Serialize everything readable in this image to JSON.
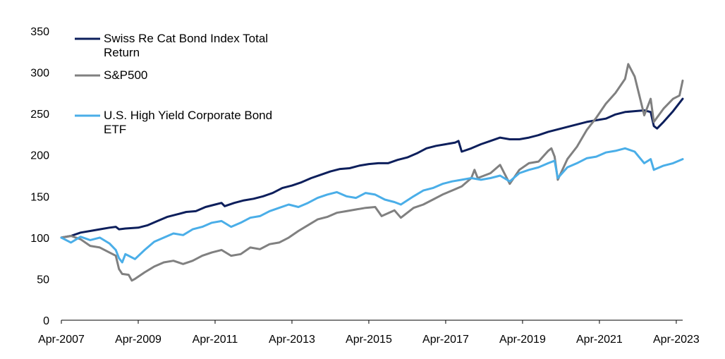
{
  "chart_data": {
    "type": "line",
    "title": "",
    "xlabel": "",
    "ylabel": "",
    "ylim": [
      0,
      350
    ],
    "yticks": [
      "0",
      "50",
      "100",
      "150",
      "200",
      "250",
      "300",
      "350"
    ],
    "xticks": [
      "Apr-2007",
      "Apr-2009",
      "Apr-2011",
      "Apr-2013",
      "Apr-2015",
      "Apr-2017",
      "Apr-2019",
      "Apr-2021",
      "Apr-2023"
    ],
    "xrange": [
      "2007-04",
      "2023-06"
    ],
    "grid": false,
    "legend_position": "top-left",
    "series": [
      {
        "name": "Swiss Re Cat Bond Index Total Return",
        "legend_lines": [
          "Swiss Re Cat Bond Index Total",
          "Return"
        ],
        "color": "#0d1f5c",
        "points": [
          [
            "2007-04",
            100
          ],
          [
            "2007-07",
            102
          ],
          [
            "2007-10",
            106
          ],
          [
            "2008-01",
            108
          ],
          [
            "2008-04",
            110
          ],
          [
            "2008-07",
            112
          ],
          [
            "2008-09",
            113
          ],
          [
            "2008-10",
            110
          ],
          [
            "2008-12",
            111
          ],
          [
            "2009-04",
            112
          ],
          [
            "2009-07",
            115
          ],
          [
            "2009-10",
            120
          ],
          [
            "2010-01",
            125
          ],
          [
            "2010-04",
            128
          ],
          [
            "2010-07",
            131
          ],
          [
            "2010-10",
            132
          ],
          [
            "2011-01",
            137
          ],
          [
            "2011-04",
            140
          ],
          [
            "2011-06",
            142
          ],
          [
            "2011-07",
            138
          ],
          [
            "2011-10",
            142
          ],
          [
            "2012-01",
            145
          ],
          [
            "2012-04",
            147
          ],
          [
            "2012-07",
            150
          ],
          [
            "2012-10",
            154
          ],
          [
            "2013-01",
            160
          ],
          [
            "2013-04",
            163
          ],
          [
            "2013-07",
            167
          ],
          [
            "2013-10",
            172
          ],
          [
            "2014-01",
            176
          ],
          [
            "2014-04",
            180
          ],
          [
            "2014-07",
            183
          ],
          [
            "2014-10",
            184
          ],
          [
            "2015-01",
            187
          ],
          [
            "2015-04",
            189
          ],
          [
            "2015-07",
            190
          ],
          [
            "2015-10",
            190
          ],
          [
            "2016-01",
            194
          ],
          [
            "2016-04",
            197
          ],
          [
            "2016-07",
            202
          ],
          [
            "2016-10",
            208
          ],
          [
            "2017-01",
            211
          ],
          [
            "2017-04",
            213
          ],
          [
            "2017-07",
            215
          ],
          [
            "2017-08",
            217
          ],
          [
            "2017-09",
            204
          ],
          [
            "2017-12",
            208
          ],
          [
            "2018-03",
            213
          ],
          [
            "2018-06",
            217
          ],
          [
            "2018-09",
            221
          ],
          [
            "2018-12",
            219
          ],
          [
            "2019-03",
            219
          ],
          [
            "2019-06",
            221
          ],
          [
            "2019-09",
            224
          ],
          [
            "2019-12",
            228
          ],
          [
            "2020-03",
            231
          ],
          [
            "2020-06",
            234
          ],
          [
            "2020-09",
            237
          ],
          [
            "2020-12",
            240
          ],
          [
            "2021-03",
            242
          ],
          [
            "2021-06",
            244
          ],
          [
            "2021-09",
            249
          ],
          [
            "2021-12",
            252
          ],
          [
            "2022-03",
            253
          ],
          [
            "2022-06",
            254
          ],
          [
            "2022-08",
            252
          ],
          [
            "2022-09",
            235
          ],
          [
            "2022-10",
            232
          ],
          [
            "2022-12",
            240
          ],
          [
            "2023-03",
            253
          ],
          [
            "2023-06",
            268
          ]
        ]
      },
      {
        "name": "S&P500",
        "legend_lines": [
          "S&P500"
        ],
        "color": "#808080",
        "points": [
          [
            "2007-04",
            100
          ],
          [
            "2007-07",
            102
          ],
          [
            "2007-10",
            98
          ],
          [
            "2008-01",
            90
          ],
          [
            "2008-04",
            88
          ],
          [
            "2008-07",
            82
          ],
          [
            "2008-09",
            78
          ],
          [
            "2008-10",
            62
          ],
          [
            "2008-11",
            56
          ],
          [
            "2009-01",
            55
          ],
          [
            "2009-02",
            48
          ],
          [
            "2009-03",
            50
          ],
          [
            "2009-06",
            58
          ],
          [
            "2009-09",
            65
          ],
          [
            "2009-12",
            70
          ],
          [
            "2010-03",
            72
          ],
          [
            "2010-06",
            68
          ],
          [
            "2010-09",
            72
          ],
          [
            "2010-12",
            78
          ],
          [
            "2011-03",
            82
          ],
          [
            "2011-06",
            85
          ],
          [
            "2011-09",
            78
          ],
          [
            "2011-12",
            80
          ],
          [
            "2012-03",
            88
          ],
          [
            "2012-06",
            86
          ],
          [
            "2012-09",
            92
          ],
          [
            "2012-12",
            94
          ],
          [
            "2013-03",
            100
          ],
          [
            "2013-06",
            108
          ],
          [
            "2013-09",
            115
          ],
          [
            "2013-12",
            122
          ],
          [
            "2014-03",
            125
          ],
          [
            "2014-06",
            130
          ],
          [
            "2014-09",
            132
          ],
          [
            "2014-12",
            134
          ],
          [
            "2015-03",
            136
          ],
          [
            "2015-06",
            137
          ],
          [
            "2015-08",
            126
          ],
          [
            "2015-12",
            133
          ],
          [
            "2016-02",
            124
          ],
          [
            "2016-06",
            136
          ],
          [
            "2016-09",
            140
          ],
          [
            "2016-12",
            146
          ],
          [
            "2017-03",
            152
          ],
          [
            "2017-06",
            157
          ],
          [
            "2017-09",
            162
          ],
          [
            "2017-12",
            172
          ],
          [
            "2018-01",
            182
          ],
          [
            "2018-02",
            172
          ],
          [
            "2018-06",
            178
          ],
          [
            "2018-09",
            188
          ],
          [
            "2018-12",
            165
          ],
          [
            "2019-03",
            182
          ],
          [
            "2019-06",
            190
          ],
          [
            "2019-09",
            192
          ],
          [
            "2019-12",
            205
          ],
          [
            "2020-01",
            208
          ],
          [
            "2020-02",
            198
          ],
          [
            "2020-03",
            170
          ],
          [
            "2020-06",
            195
          ],
          [
            "2020-09",
            210
          ],
          [
            "2020-12",
            230
          ],
          [
            "2021-03",
            245
          ],
          [
            "2021-06",
            262
          ],
          [
            "2021-09",
            275
          ],
          [
            "2021-12",
            292
          ],
          [
            "2022-01",
            310
          ],
          [
            "2022-03",
            295
          ],
          [
            "2022-06",
            248
          ],
          [
            "2022-08",
            268
          ],
          [
            "2022-09",
            240
          ],
          [
            "2022-12",
            256
          ],
          [
            "2023-03",
            268
          ],
          [
            "2023-05",
            272
          ],
          [
            "2023-06",
            290
          ]
        ]
      },
      {
        "name": "U.S. High Yield Corporate Bond ETF",
        "legend_lines": [
          "U.S. High Yield Corporate Bond",
          "ETF"
        ],
        "color": "#4aaee8",
        "points": [
          [
            "2007-04",
            100
          ],
          [
            "2007-07",
            94
          ],
          [
            "2007-10",
            101
          ],
          [
            "2008-01",
            97
          ],
          [
            "2008-04",
            100
          ],
          [
            "2008-07",
            93
          ],
          [
            "2008-09",
            85
          ],
          [
            "2008-10",
            75
          ],
          [
            "2008-11",
            70
          ],
          [
            "2008-12",
            80
          ],
          [
            "2009-01",
            78
          ],
          [
            "2009-03",
            74
          ],
          [
            "2009-06",
            85
          ],
          [
            "2009-09",
            95
          ],
          [
            "2009-12",
            100
          ],
          [
            "2010-03",
            105
          ],
          [
            "2010-06",
            103
          ],
          [
            "2010-09",
            110
          ],
          [
            "2010-12",
            113
          ],
          [
            "2011-03",
            118
          ],
          [
            "2011-06",
            120
          ],
          [
            "2011-09",
            113
          ],
          [
            "2011-12",
            118
          ],
          [
            "2012-03",
            124
          ],
          [
            "2012-06",
            126
          ],
          [
            "2012-09",
            132
          ],
          [
            "2012-12",
            136
          ],
          [
            "2013-03",
            140
          ],
          [
            "2013-06",
            137
          ],
          [
            "2013-09",
            142
          ],
          [
            "2013-12",
            148
          ],
          [
            "2014-03",
            152
          ],
          [
            "2014-06",
            155
          ],
          [
            "2014-09",
            150
          ],
          [
            "2014-12",
            148
          ],
          [
            "2015-03",
            154
          ],
          [
            "2015-06",
            152
          ],
          [
            "2015-09",
            146
          ],
          [
            "2015-12",
            143
          ],
          [
            "2016-02",
            140
          ],
          [
            "2016-06",
            150
          ],
          [
            "2016-09",
            157
          ],
          [
            "2016-12",
            160
          ],
          [
            "2017-03",
            165
          ],
          [
            "2017-06",
            168
          ],
          [
            "2017-09",
            170
          ],
          [
            "2017-12",
            172
          ],
          [
            "2018-03",
            170
          ],
          [
            "2018-06",
            172
          ],
          [
            "2018-09",
            175
          ],
          [
            "2018-12",
            168
          ],
          [
            "2019-03",
            178
          ],
          [
            "2019-06",
            182
          ],
          [
            "2019-09",
            185
          ],
          [
            "2019-12",
            190
          ],
          [
            "2020-02",
            193
          ],
          [
            "2020-03",
            172
          ],
          [
            "2020-06",
            185
          ],
          [
            "2020-09",
            190
          ],
          [
            "2020-12",
            196
          ],
          [
            "2021-03",
            198
          ],
          [
            "2021-06",
            203
          ],
          [
            "2021-09",
            205
          ],
          [
            "2021-12",
            208
          ],
          [
            "2022-03",
            204
          ],
          [
            "2022-06",
            190
          ],
          [
            "2022-08",
            195
          ],
          [
            "2022-09",
            182
          ],
          [
            "2022-12",
            187
          ],
          [
            "2023-03",
            190
          ],
          [
            "2023-06",
            195
          ]
        ]
      }
    ]
  }
}
